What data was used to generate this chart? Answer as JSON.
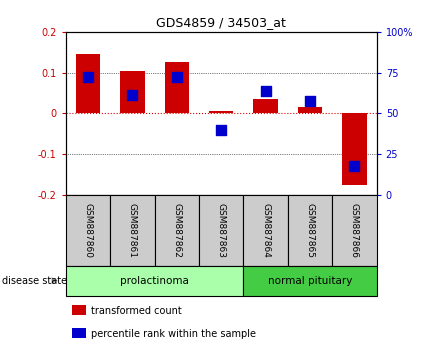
{
  "title": "GDS4859 / 34503_at",
  "samples": [
    "GSM887860",
    "GSM887861",
    "GSM887862",
    "GSM887863",
    "GSM887864",
    "GSM887865",
    "GSM887866"
  ],
  "red_bars": [
    0.145,
    0.105,
    0.125,
    0.005,
    0.035,
    0.015,
    -0.175
  ],
  "blue_dots": [
    0.09,
    0.045,
    0.09,
    -0.04,
    0.055,
    0.03,
    -0.13
  ],
  "ylim_left": [
    -0.2,
    0.2
  ],
  "ylim_right": [
    0,
    100
  ],
  "yticks_left": [
    -0.2,
    -0.1,
    0.0,
    0.1,
    0.2
  ],
  "yticks_right": [
    0,
    25,
    50,
    75,
    100
  ],
  "yticklabels_left": [
    "-0.2",
    "-0.1",
    "0",
    "0.1",
    "0.2"
  ],
  "yticklabels_right": [
    "0",
    "25",
    "50",
    "75",
    "100%"
  ],
  "groups": [
    {
      "label": "prolactinoma",
      "indices": [
        0,
        1,
        2,
        3
      ],
      "color": "#AAFFAA"
    },
    {
      "label": "normal pituitary",
      "indices": [
        4,
        5,
        6
      ],
      "color": "#44CC44"
    }
  ],
  "disease_state_label": "disease state",
  "legend": [
    {
      "label": "transformed count",
      "color": "#CC0000"
    },
    {
      "label": "percentile rank within the sample",
      "color": "#0000CC"
    }
  ],
  "bar_color": "#CC0000",
  "dot_color": "#0000CC",
  "bar_width": 0.55,
  "dot_size": 55,
  "bg_color": "#FFFFFF",
  "plot_bg": "#FFFFFF",
  "grid_color": "#000000",
  "zero_line_color": "#DD0000",
  "tick_color_left": "#CC0000",
  "tick_color_right": "#0000CC",
  "sample_box_color": "#CCCCCC",
  "group_border_color": "#000000"
}
